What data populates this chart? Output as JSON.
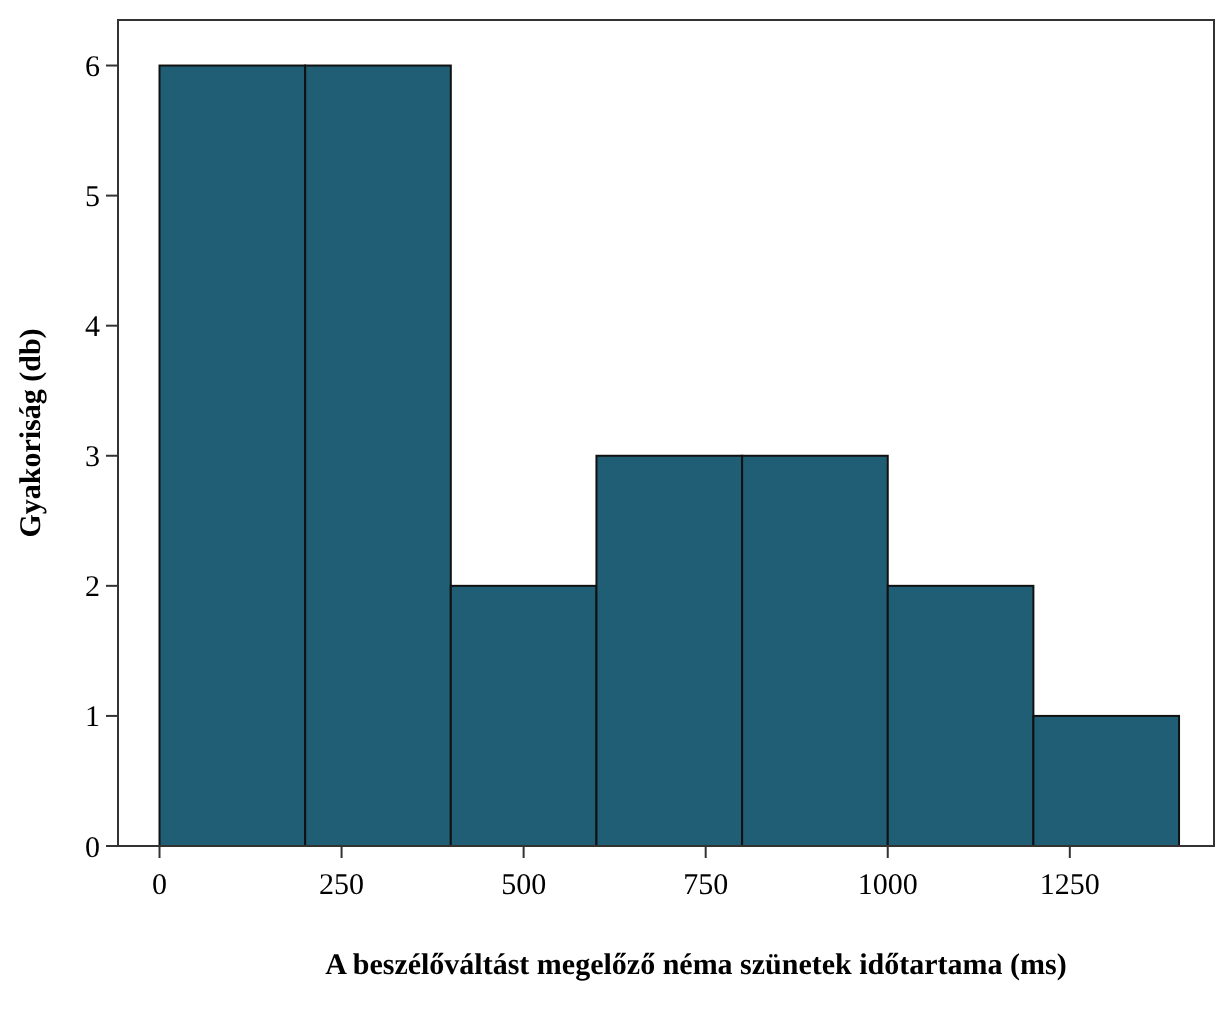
{
  "chart_data": {
    "type": "histogram",
    "xlabel": "A beszélőváltást megelőző néma szünetek időtartama (ms)",
    "ylabel": "Gyakoriság (db)",
    "bins": [
      0,
      200,
      400,
      600,
      800,
      1000,
      1200,
      1400
    ],
    "values": [
      6,
      6,
      2,
      3,
      3,
      2,
      1
    ],
    "color": "#1f5e74",
    "xlim": [
      -57,
      1448
    ],
    "xticks": [
      0,
      250,
      500,
      750,
      1000,
      1250
    ],
    "ylim": [
      0,
      6.35
    ],
    "yticks": [
      0,
      1,
      2,
      3,
      4,
      5,
      6
    ],
    "grid": false
  }
}
